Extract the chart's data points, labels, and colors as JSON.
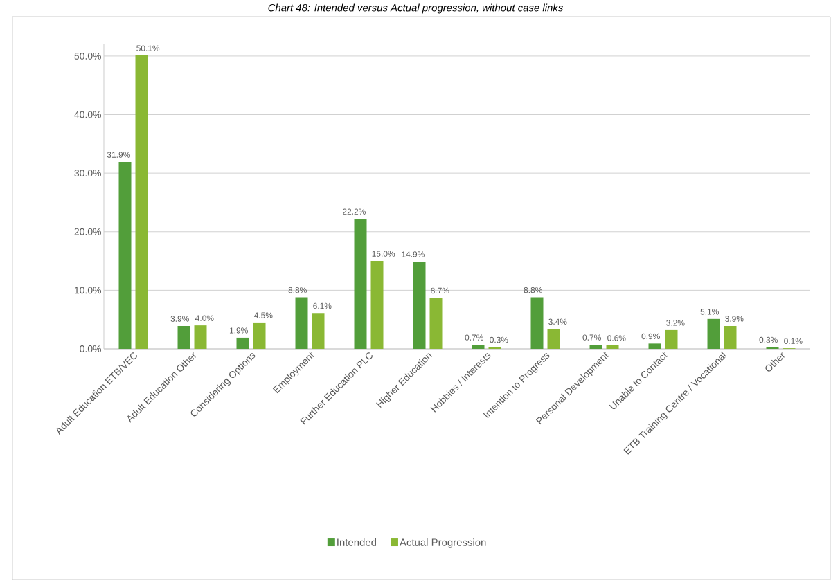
{
  "chart_data": {
    "type": "bar",
    "title": "*Chart 48: Intended versus Actual progression, without case links*",
    "categories": [
      "Adult Education ETB/VEC",
      "Adult Education Other",
      "Considering Options",
      "Employment",
      "Further Education PLC",
      "Higher Education",
      "Hobbies / Interests",
      "Intention to Progress",
      "Personal Development",
      "Unable to Contact",
      "ETB Training Centre / Vocational",
      "Other"
    ],
    "series": [
      {
        "name": "Intended",
        "color": "#529e3a",
        "values": [
          31.9,
          3.9,
          1.9,
          8.8,
          22.2,
          14.9,
          0.7,
          8.8,
          0.7,
          0.9,
          5.1,
          0.3
        ],
        "value_labels": [
          "31.9%",
          "3.9%",
          "1.9%",
          "8.8%",
          "22.2%",
          "14.9%",
          "0.7%",
          "8.8%",
          "0.7%",
          "0.9%",
          "5.1%",
          "0.3%"
        ]
      },
      {
        "name": "Actual Progression",
        "color": "#8ab834",
        "values": [
          50.1,
          4.0,
          4.5,
          6.1,
          15.0,
          8.7,
          0.3,
          3.4,
          0.6,
          3.2,
          3.9,
          0.1
        ],
        "value_labels": [
          "50.1%",
          "4.0%",
          "4.5%",
          "6.1%",
          "15.0%",
          "8.7%",
          "0.3%",
          "3.4%",
          "0.6%",
          "3.2%",
          "3.9%",
          "0.1%"
        ]
      }
    ],
    "ylim": [
      0,
      52
    ],
    "yticks": [
      {
        "value": 0,
        "label": "0.0%"
      },
      {
        "value": 10,
        "label": "10.0%"
      },
      {
        "value": 20,
        "label": "20.0%"
      },
      {
        "value": 30,
        "label": "30.0%"
      },
      {
        "value": 40,
        "label": "40.0%"
      },
      {
        "value": 50,
        "label": "50.0%"
      }
    ],
    "grid": "y",
    "legend": "bottom"
  }
}
